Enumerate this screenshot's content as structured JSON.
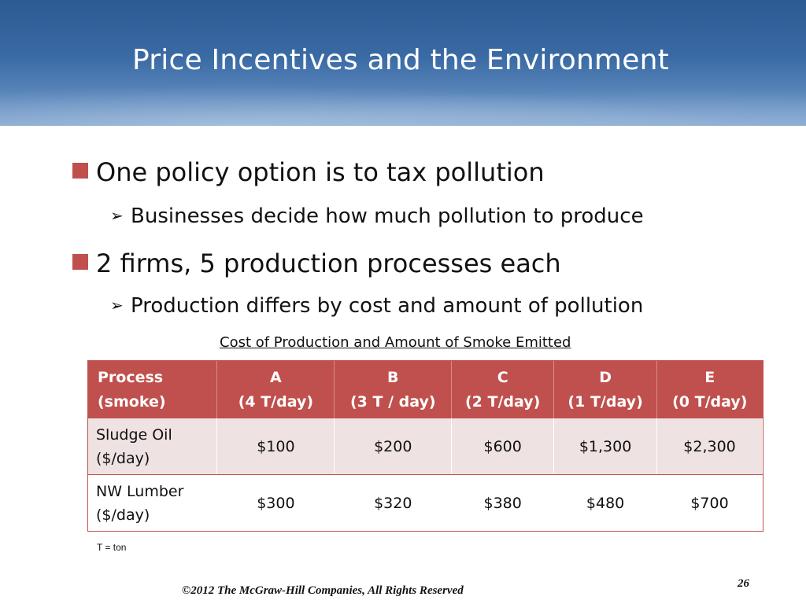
{
  "slide": {
    "title": "Price Incentives and the Environment",
    "bullets": [
      {
        "level": 1,
        "text": "One policy option is to tax pollution"
      },
      {
        "level": 2,
        "text": "Businesses decide how much pollution to produce"
      },
      {
        "level": 1,
        "text": "2 firms, 5 production processes each"
      },
      {
        "level": 2,
        "text": "Production differs by cost and amount of pollution"
      }
    ],
    "table_caption": "Cost of Production and Amount of Smoke Emitted",
    "table": {
      "headers": [
        {
          "line1": "Process",
          "line2": "(smoke)"
        },
        {
          "line1": "A",
          "line2": "(4 T/day)"
        },
        {
          "line1": "B",
          "line2": "(3 T / day)"
        },
        {
          "line1": "C",
          "line2": "(2 T/day)"
        },
        {
          "line1": "D",
          "line2": "(1 T/day)"
        },
        {
          "line1": "E",
          "line2": "(0 T/day)"
        }
      ],
      "rows": [
        {
          "label_line1": "Sludge Oil",
          "label_line2": "($/day)",
          "values": [
            "$100",
            "$200",
            "$600",
            "$1,300",
            "$2,300"
          ]
        },
        {
          "label_line1": "NW Lumber",
          "label_line2": "($/day)",
          "values": [
            "$300",
            "$320",
            "$380",
            "$480",
            "$700"
          ]
        }
      ]
    },
    "note": "T = ton",
    "footer": "©2012 The McGraw-Hill Companies, All Rights Reserved",
    "page_number": "26"
  },
  "colors": {
    "header_blue": "#2c5a93",
    "accent_red": "#c0504d",
    "row_tint": "#efe2e2"
  },
  "icons": {
    "level1_bullet": "red-square-icon",
    "level2_bullet": "arrow-right-icon"
  }
}
